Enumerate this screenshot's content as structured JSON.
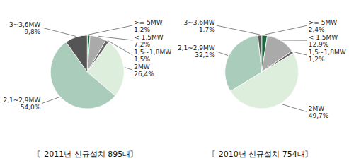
{
  "chart_data": [
    {
      "type": "pie",
      "title": "〘2011년 신규설치 895대〙",
      "categories": [
        ">= 5MW",
        "< 1,5MW",
        "1,5~1,8MW",
        "2MW",
        "2,1~2,9MW",
        "3~3,6MW"
      ],
      "values": [
        1.2,
        7.2,
        1.5,
        26.4,
        54.0,
        9.8
      ],
      "value_labels": [
        "1,2%",
        "7,2%",
        "1,5%",
        "26,4%",
        "54,0%",
        "9,8%"
      ],
      "colors": [
        "#1a6640",
        "#aaaaaa",
        "#666666",
        "#ddeedd",
        "#aaccbb",
        "#555555"
      ],
      "data_labels": true
    },
    {
      "type": "pie",
      "title": "〘2010년 신규설치 754대〙",
      "categories": [
        ">= 5MW",
        "< 1,5MW",
        "1,5~1,8MW",
        "2MW",
        "2,1~2,9MW",
        "3~3,6MW"
      ],
      "values": [
        2.4,
        12.9,
        1.2,
        49.7,
        32.1,
        1.7
      ],
      "value_labels": [
        "2,4%",
        "12,9%",
        "1,2%",
        "49,7%",
        "32,1%",
        "1,7%"
      ],
      "colors": [
        "#1a6640",
        "#aaaaaa",
        "#666666",
        "#ddeedd",
        "#aaccbb",
        "#555555"
      ],
      "data_labels": true
    }
  ]
}
